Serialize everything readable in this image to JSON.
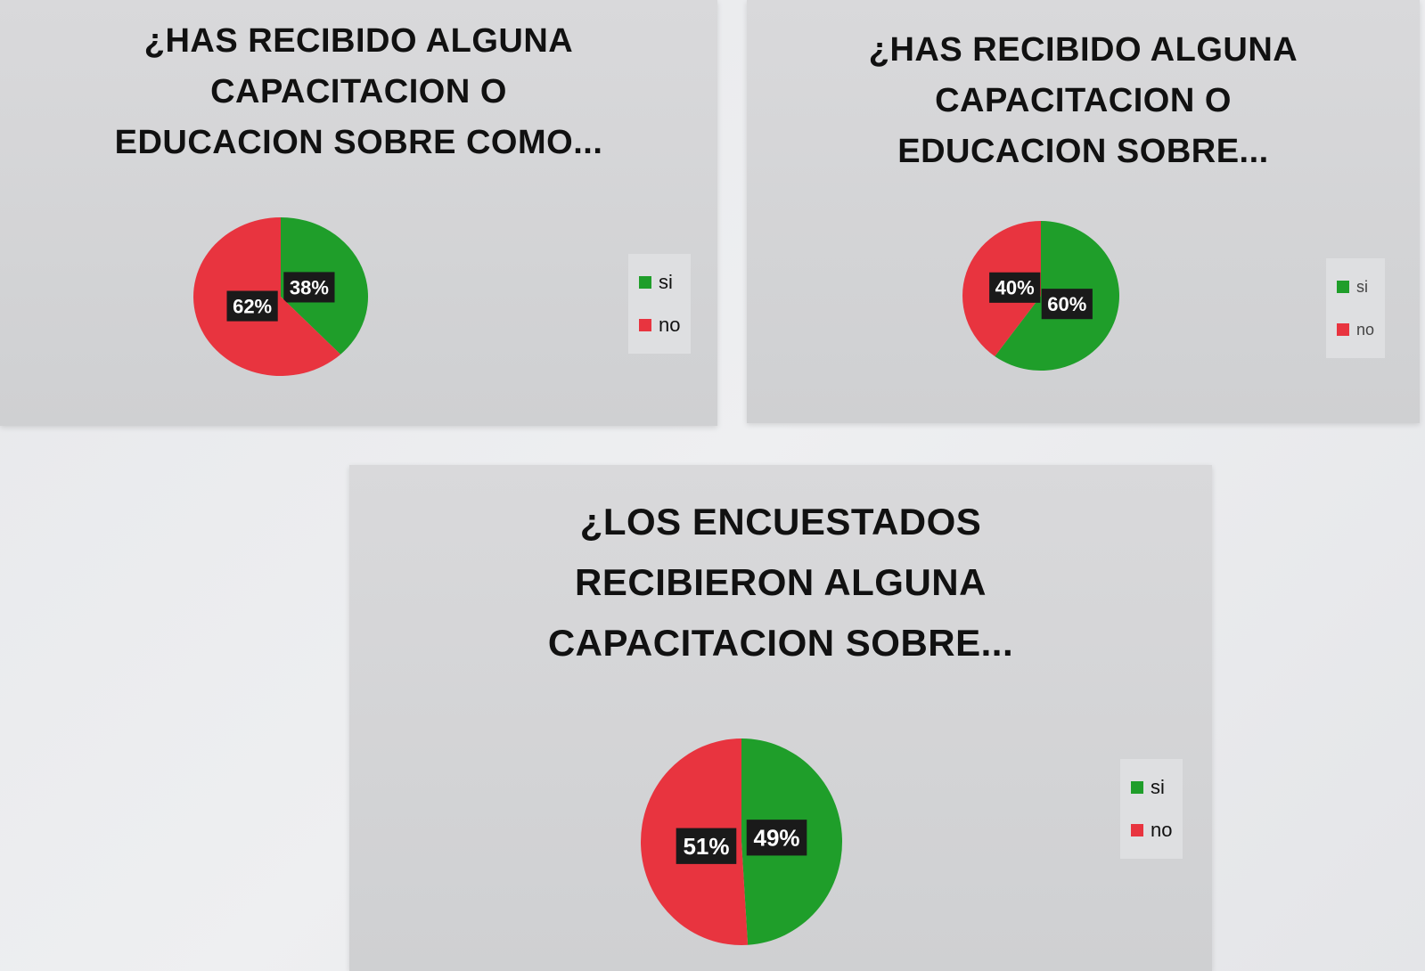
{
  "colors": {
    "si": "#1f9e2a",
    "no": "#e8343f"
  },
  "charts": [
    {
      "title": "¿HAS RECIBIDO ALGUNA\nCAPACITACION O\nEDUCACION SOBRE COMO...",
      "legend": {
        "si": "si",
        "no": "no"
      }
    },
    {
      "title": "¿HAS RECIBIDO ALGUNA\nCAPACITACION O\nEDUCACION SOBRE...",
      "legend": {
        "si": "si",
        "no": "no"
      }
    },
    {
      "title": "¿LOS ENCUESTADOS\nRECIBIERON ALGUNA\nCAPACITACION SOBRE...",
      "legend": {
        "si": "si",
        "no": "no"
      }
    }
  ],
  "chart_data": [
    {
      "type": "pie",
      "title": "¿HAS RECIBIDO ALGUNA CAPACITACION O EDUCACION SOBRE COMO...",
      "categories": [
        "si",
        "no"
      ],
      "values": [
        38,
        62
      ],
      "labels": [
        "38%",
        "62%"
      ],
      "colors": [
        "#1f9e2a",
        "#e8343f"
      ],
      "legend_position": "right"
    },
    {
      "type": "pie",
      "title": "¿HAS RECIBIDO ALGUNA CAPACITACION O EDUCACION SOBRE...",
      "categories": [
        "si",
        "no"
      ],
      "values": [
        60,
        40
      ],
      "labels": [
        "60%",
        "40%"
      ],
      "colors": [
        "#1f9e2a",
        "#e8343f"
      ],
      "legend_position": "right"
    },
    {
      "type": "pie",
      "title": "¿LOS ENCUESTADOS RECIBIERON ALGUNA CAPACITACION SOBRE...",
      "categories": [
        "si",
        "no"
      ],
      "values": [
        49,
        51
      ],
      "labels": [
        "49%",
        "51%"
      ],
      "colors": [
        "#1f9e2a",
        "#e8343f"
      ],
      "legend_position": "right"
    }
  ]
}
